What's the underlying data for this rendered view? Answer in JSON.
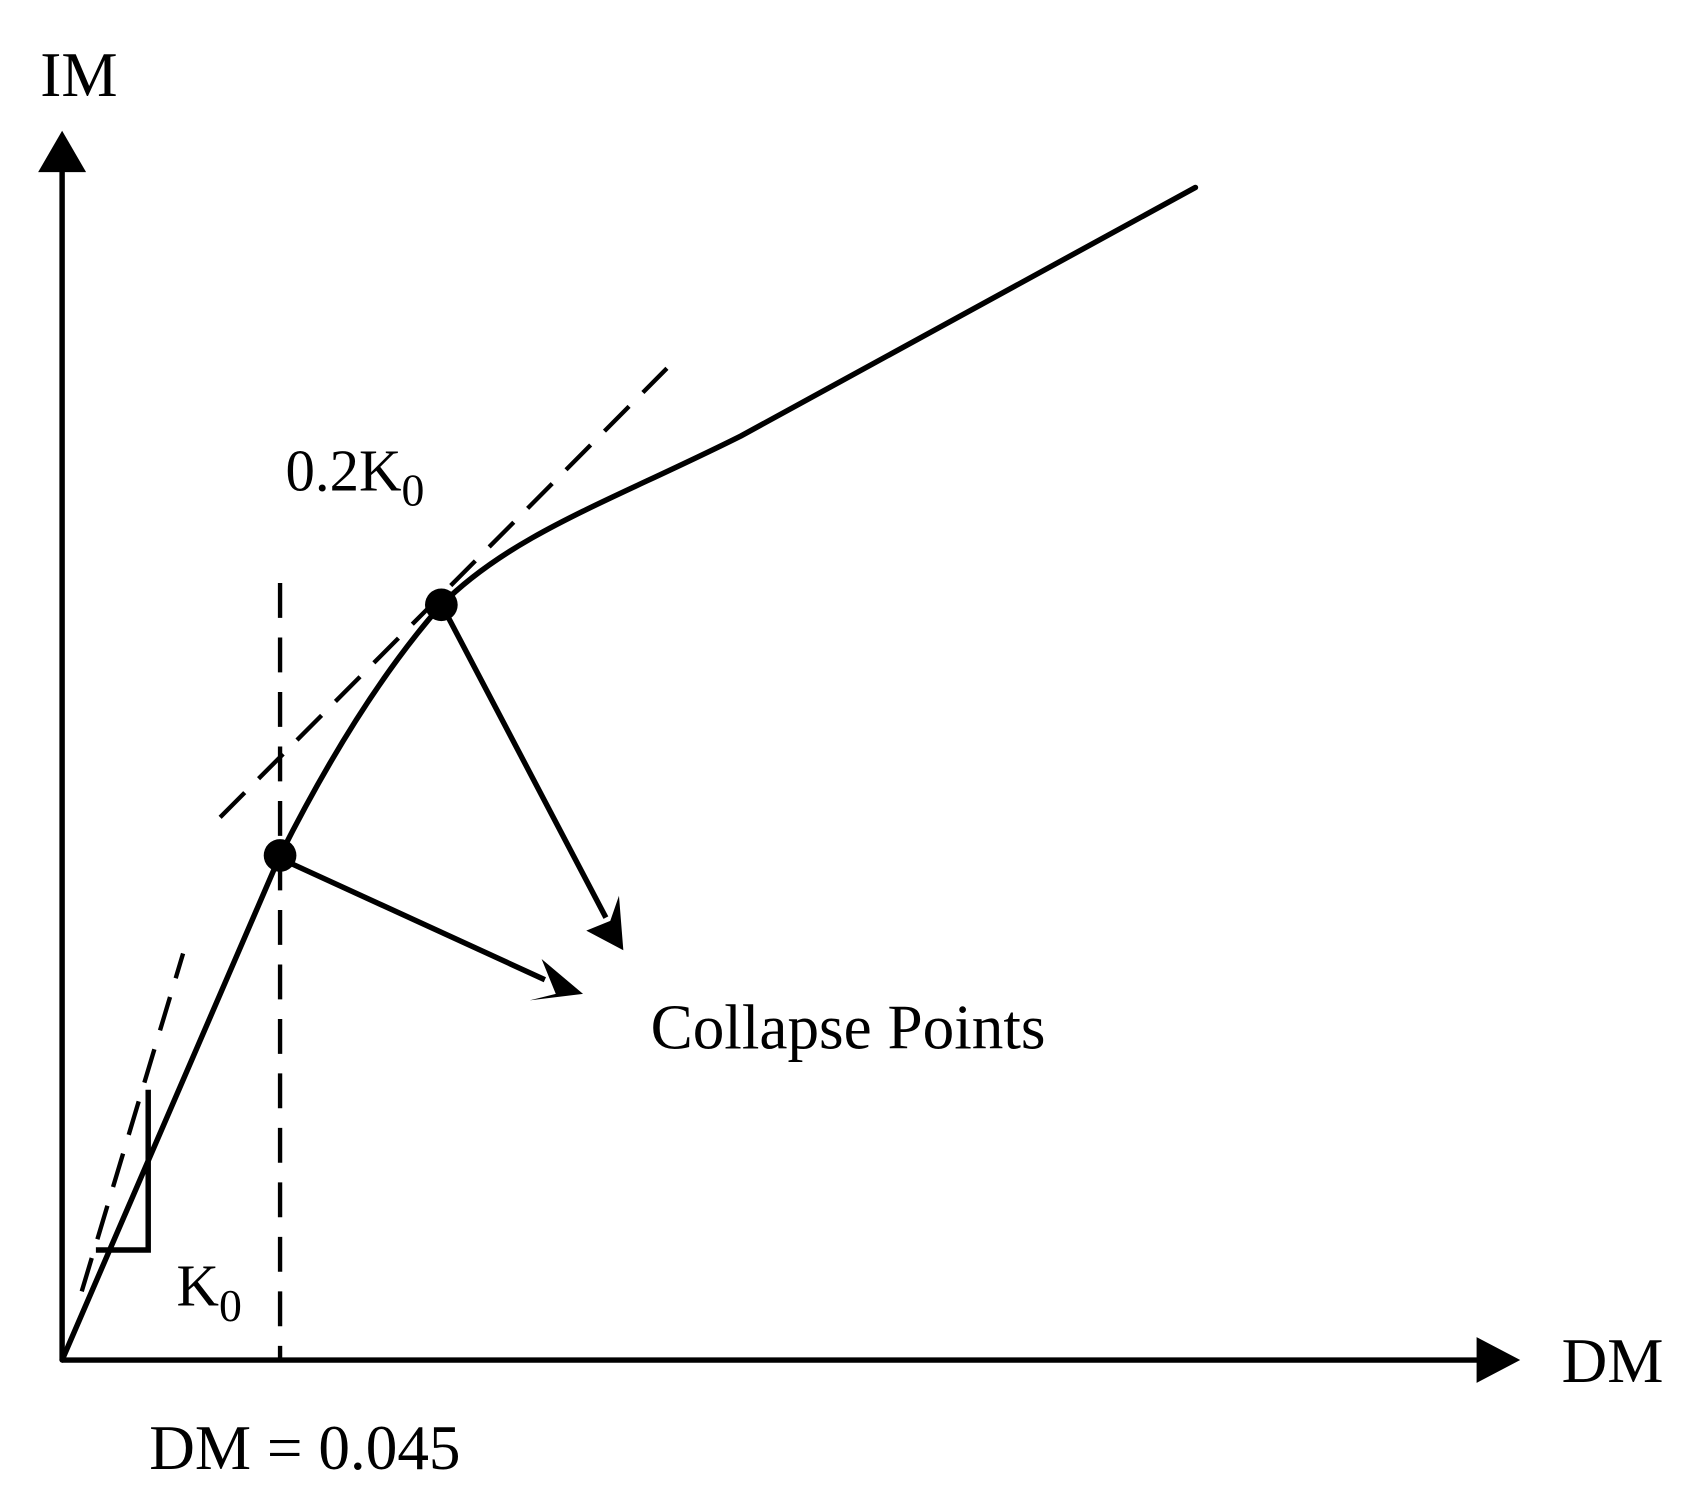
{
  "labels": {
    "y_axis": "IM",
    "x_axis": "DM",
    "threshold": "DM = 0.045",
    "collapse": "Collapse Points",
    "slope_initial": {
      "base": "K",
      "sub": "0"
    },
    "slope_reduced": {
      "base": "0.2K",
      "sub": "0"
    }
  }
}
